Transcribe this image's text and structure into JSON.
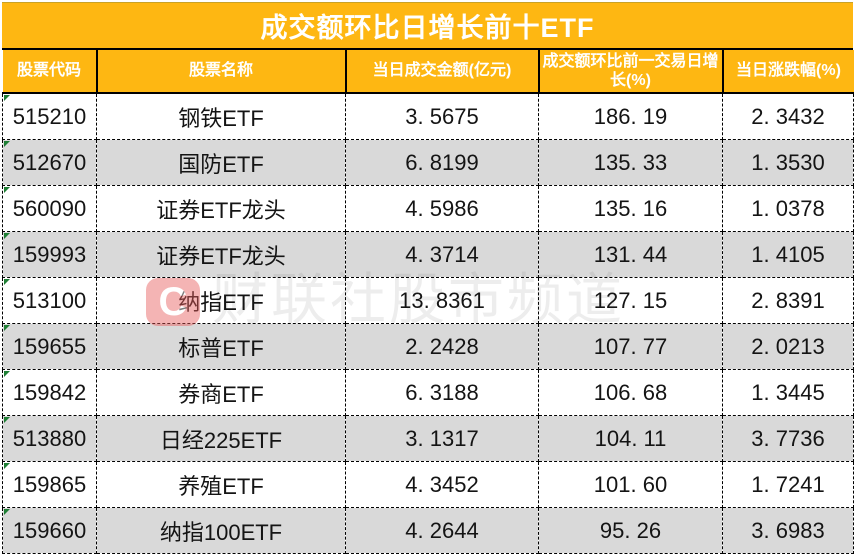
{
  "title": "成交额环比日增长前十ETF",
  "chart_data": {
    "type": "table",
    "title": "成交额环比日增长前十ETF",
    "columns": [
      "股票代码",
      "股票名称",
      "当日成交金额(亿元)",
      "成交额环比前一交易日增长(%)",
      "当日涨跌幅(%)"
    ],
    "rows": [
      {
        "code": "515210",
        "name": "钢铁ETF",
        "turnover": "3. 5675",
        "growth": "186. 19",
        "change": "2. 3432"
      },
      {
        "code": "512670",
        "name": "国防ETF",
        "turnover": "6. 8199",
        "growth": "135. 33",
        "change": "1. 3530"
      },
      {
        "code": "560090",
        "name": "证券ETF龙头",
        "turnover": "4. 5986",
        "growth": "135. 16",
        "change": "1. 0378"
      },
      {
        "code": "159993",
        "name": "证券ETF龙头",
        "turnover": "4. 3714",
        "growth": "131. 44",
        "change": "1. 4105"
      },
      {
        "code": "513100",
        "name": "纳指ETF",
        "turnover": "13. 8361",
        "growth": "127. 15",
        "change": "2. 8391"
      },
      {
        "code": "159655",
        "name": "标普ETF",
        "turnover": "2. 2428",
        "growth": "107. 77",
        "change": "2. 0213"
      },
      {
        "code": "159842",
        "name": "券商ETF",
        "turnover": "6. 3188",
        "growth": "106. 68",
        "change": "1. 3445"
      },
      {
        "code": "513880",
        "name": "日经225ETF",
        "turnover": "3. 1317",
        "growth": "104. 11",
        "change": "3. 7736"
      },
      {
        "code": "159865",
        "name": "养殖ETF",
        "turnover": "4. 3452",
        "growth": "101. 60",
        "change": "1. 7241"
      },
      {
        "code": "159660",
        "name": "纳指100ETF",
        "turnover": "4. 2644",
        "growth": "95. 26",
        "change": "3. 6983"
      }
    ]
  },
  "watermark": {
    "logo_letter": "C",
    "text": "财联社股市频道"
  },
  "colors": {
    "header_yellow": "#FEB712",
    "row_alt_gray": "#D9D9D9",
    "flag_green": "#1E7E34",
    "watermark_red": "#E85B5B",
    "border_black": "#000000",
    "header_text_white": "#FFFFFF"
  }
}
